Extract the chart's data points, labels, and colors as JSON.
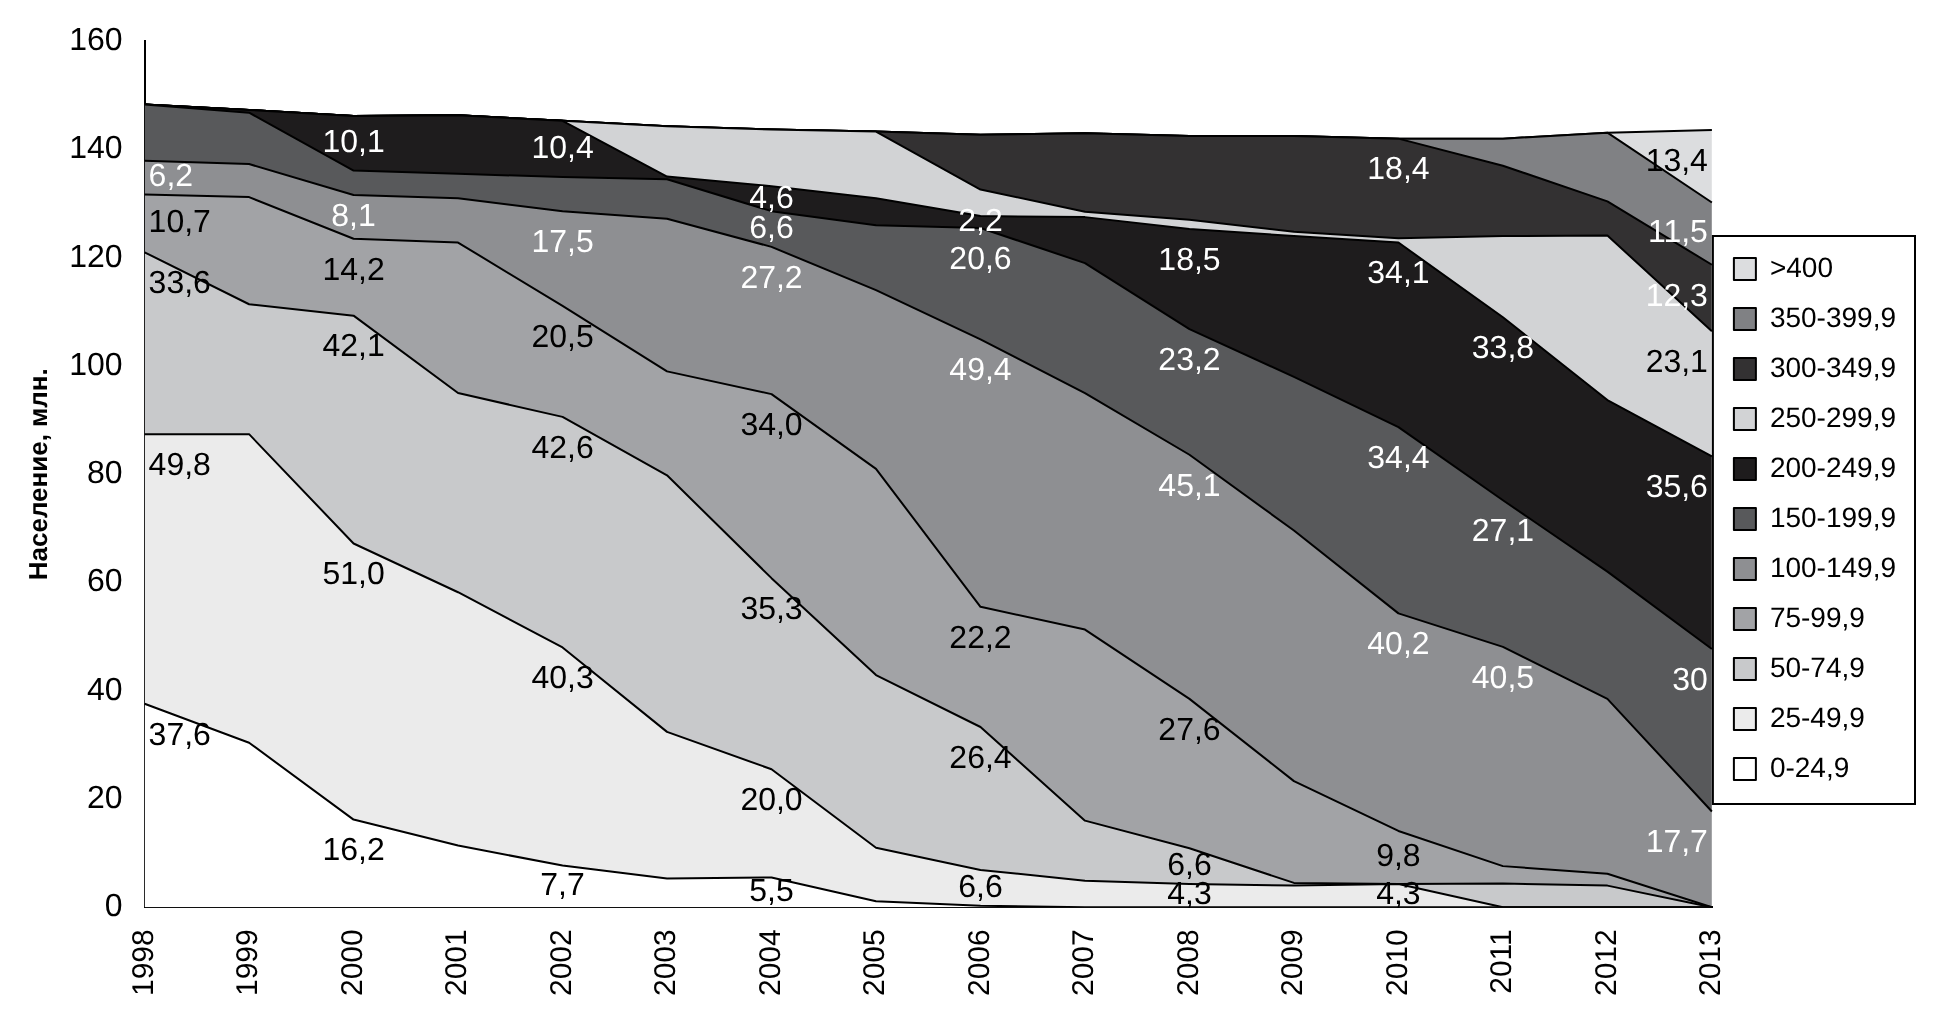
{
  "chart_data": {
    "type": "area",
    "stacked": true,
    "ylabel": "Население, млн.",
    "ylim": [
      0,
      160
    ],
    "yticks": [
      0,
      20,
      40,
      60,
      80,
      100,
      120,
      140,
      160
    ],
    "grid": false,
    "legend": "right",
    "categories": [
      "1998",
      "1999",
      "2000",
      "2001",
      "2002",
      "2003",
      "2004",
      "2005",
      "2006",
      "2007",
      "2008",
      "2009",
      "2010",
      "2011",
      "2012",
      "2013"
    ],
    "series": [
      {
        "name": "0-24,9",
        "color": "#ffffff",
        "values": [
          37.6,
          30.4,
          16.2,
          11.4,
          7.7,
          5.3,
          5.5,
          1.1,
          0.3,
          0,
          0,
          0,
          0,
          0,
          0,
          0
        ],
        "value_labels": [
          "37,6",
          null,
          "16,2",
          null,
          "7,7",
          null,
          "5,5",
          null,
          null,
          null,
          null,
          null,
          null,
          null,
          null,
          null
        ]
      },
      {
        "name": "25-49,9",
        "color": "#ebebeb",
        "values": [
          49.8,
          57.0,
          51.0,
          46.8,
          40.3,
          27.1,
          20.0,
          9.9,
          6.6,
          4.9,
          4.3,
          4.0,
          4.3,
          0,
          0,
          0
        ],
        "value_labels": [
          "49,8",
          null,
          "51,0",
          null,
          "40,3",
          null,
          "20,0",
          null,
          "6,6",
          null,
          "4,3",
          null,
          "4,3",
          null,
          null,
          null
        ]
      },
      {
        "name": "50-74,9",
        "color": "#c8c9cb",
        "values": [
          33.6,
          24.0,
          42.1,
          36.8,
          42.6,
          47.4,
          35.3,
          31.9,
          26.4,
          11.1,
          6.6,
          0.5,
          0,
          4.4,
          4.0,
          0
        ],
        "value_labels": [
          "33,6",
          null,
          "42,1",
          null,
          "42,6",
          null,
          "35,3",
          null,
          "26,4",
          null,
          "6,6",
          null,
          null,
          null,
          null,
          null
        ]
      },
      {
        "name": "75-99,9",
        "color": "#a2a3a6",
        "values": [
          10.7,
          19.8,
          14.2,
          27.8,
          20.5,
          19.2,
          34.0,
          38.1,
          22.2,
          35.3,
          27.6,
          18.8,
          9.8,
          3.2,
          2.2,
          0
        ],
        "value_labels": [
          "10,7",
          null,
          "14,2",
          null,
          "20,5",
          null,
          "34,0",
          null,
          "22,2",
          null,
          "27,6",
          null,
          "9,8",
          null,
          null,
          null
        ]
      },
      {
        "name": "100-149,9",
        "color": "#8e8f92",
        "values": [
          6.2,
          6.1,
          8.1,
          8.2,
          17.5,
          28.2,
          27.2,
          33.0,
          49.4,
          43.7,
          45.1,
          46.3,
          40.2,
          40.5,
          32.3,
          17.7
        ],
        "value_labels": [
          "6,2",
          null,
          "8,1",
          null,
          "17,5",
          null,
          "27,2",
          null,
          "49,4",
          null,
          "45,1",
          null,
          "40,2",
          "40,5",
          null,
          "17,7"
        ]
      },
      {
        "name": "150-199,9",
        "color": "#58595b",
        "values": [
          10.4,
          9.5,
          4.5,
          4.5,
          6.3,
          7.3,
          6.6,
          12.0,
          20.6,
          24.0,
          23.2,
          28.4,
          34.4,
          27.1,
          23.5,
          30
        ],
        "value_labels": [
          null,
          null,
          null,
          null,
          null,
          null,
          "6,6",
          null,
          "20,6",
          null,
          "23,2",
          null,
          "34,4",
          "27,1",
          null,
          "30"
        ]
      },
      {
        "name": "200-249,9",
        "color": "#1e1c1d",
        "values": [
          0,
          0.5,
          10.1,
          10.8,
          10.4,
          0.5,
          4.6,
          5.0,
          2.2,
          8.5,
          18.5,
          26.0,
          34.1,
          33.8,
          31.7,
          35.6
        ],
        "value_labels": [
          null,
          null,
          "10,1",
          null,
          "10,4",
          null,
          "4,6",
          null,
          "2,2",
          null,
          "18,5",
          null,
          "34,1",
          "33,8",
          null,
          "35,6"
        ]
      },
      {
        "name": "250-299,9",
        "color": "#d2d3d5",
        "values": [
          0,
          0,
          0,
          0,
          0,
          9.3,
          10.5,
          12.3,
          4.9,
          1.0,
          1.7,
          0.8,
          0.8,
          15.0,
          30.4,
          23.1
        ],
        "value_labels": [
          null,
          null,
          null,
          null,
          null,
          null,
          null,
          null,
          null,
          null,
          null,
          null,
          null,
          null,
          null,
          "23,1"
        ]
      },
      {
        "name": "300-349,9",
        "color": "#333132",
        "values": [
          0,
          0,
          0,
          0,
          0,
          0,
          0,
          0,
          10.1,
          14.5,
          15.5,
          17.7,
          18.4,
          13.0,
          6.3,
          12.3
        ],
        "value_labels": [
          null,
          null,
          null,
          null,
          null,
          null,
          null,
          null,
          null,
          null,
          null,
          null,
          "18,4",
          null,
          null,
          "12,3"
        ]
      },
      {
        "name": "350-399,9",
        "color": "#808184",
        "values": [
          0,
          0,
          0,
          0,
          0,
          0,
          0,
          0,
          0,
          0,
          0,
          0,
          0,
          5.0,
          12.7,
          11.5
        ],
        "value_labels": [
          null,
          null,
          null,
          null,
          null,
          null,
          null,
          null,
          null,
          null,
          null,
          null,
          null,
          null,
          null,
          "11,5"
        ]
      },
      {
        "name": ">400",
        "color": "#dcdddf",
        "values": [
          0,
          0,
          0,
          0,
          0,
          0,
          0,
          0,
          0,
          0,
          0,
          0,
          0,
          0,
          0,
          13.4
        ],
        "value_labels": [
          null,
          null,
          null,
          null,
          null,
          null,
          null,
          null,
          null,
          null,
          null,
          null,
          null,
          null,
          null,
          "13,4"
        ]
      }
    ]
  }
}
